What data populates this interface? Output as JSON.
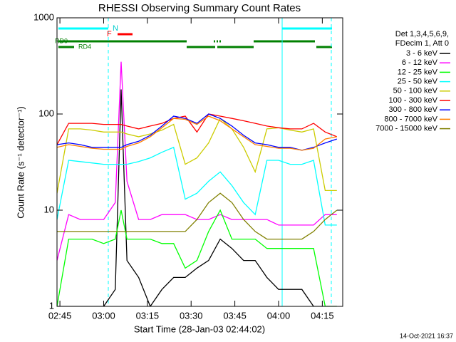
{
  "chart_data": {
    "type": "line",
    "title": "RHESSI Observing Summary Count Rates",
    "x_label": "Start Time (28-Jan-03 02:44:02)",
    "y_label": "Count Rate (s⁻¹ detector⁻¹)",
    "legend_header": [
      "Det 1,3,4,5,6,9,",
      "FDecim 1, Att 0"
    ],
    "annotations": [
      "N",
      "F",
      "RD0",
      "RD4"
    ],
    "footer": "14-Oct-2021 16:37",
    "log_y": true,
    "ylim": [
      1,
      1000
    ],
    "yticks": [
      1,
      10,
      100,
      1000
    ],
    "xlim": [
      164,
      262
    ],
    "xticks": [
      {
        "value": 165,
        "label": "02:45"
      },
      {
        "value": 180,
        "label": "03:00"
      },
      {
        "value": 195,
        "label": "03:15"
      },
      {
        "value": 210,
        "label": "03:30"
      },
      {
        "value": 225,
        "label": "03:45"
      },
      {
        "value": 240,
        "label": "04:00"
      },
      {
        "value": 255,
        "label": "04:15"
      }
    ],
    "x": [
      164,
      168,
      172,
      176,
      180,
      184,
      186,
      188,
      192,
      196,
      200,
      204,
      208,
      212,
      216,
      220,
      224,
      228,
      232,
      236,
      240,
      244,
      248,
      252,
      256,
      260
    ],
    "series": [
      {
        "name": "3 - 6 keV",
        "color": "#000000",
        "values": [
          1,
          1,
          1,
          1,
          1,
          1.5,
          180,
          3,
          2,
          1,
          1.5,
          2,
          2,
          2.5,
          3,
          5,
          4,
          3,
          3,
          2,
          1.5,
          1.5,
          1.5,
          1,
          1,
          1
        ]
      },
      {
        "name": "6 - 12 keV",
        "color": "#ff00ff",
        "values": [
          3,
          9,
          8,
          8,
          8,
          12,
          350,
          20,
          8,
          8,
          9,
          9,
          9,
          8,
          8,
          9,
          8,
          8,
          8,
          8,
          7,
          7,
          7,
          7,
          9,
          9
        ]
      },
      {
        "name": "12 - 25 keV",
        "color": "#00ff00",
        "values": [
          1,
          5,
          5,
          5,
          4.5,
          5,
          10,
          5,
          5,
          5,
          4.5,
          4.5,
          2.5,
          3,
          6,
          10,
          5,
          5,
          5,
          4,
          4,
          4,
          4,
          4,
          1,
          1
        ]
      },
      {
        "name": "25 - 50 keV",
        "color": "#00ffff",
        "values": [
          8,
          33,
          32,
          31,
          30,
          30,
          30,
          30,
          32,
          35,
          40,
          45,
          13,
          15,
          20,
          25,
          18,
          12,
          9,
          33,
          33,
          30,
          30,
          33,
          7,
          7
        ]
      },
      {
        "name": "50 - 100 keV",
        "color": "#cccc00",
        "values": [
          15,
          70,
          70,
          68,
          65,
          65,
          65,
          62,
          58,
          62,
          68,
          78,
          30,
          35,
          50,
          90,
          70,
          45,
          25,
          70,
          72,
          68,
          65,
          70,
          16,
          16
        ]
      },
      {
        "name": "100 - 300 keV",
        "color": "#ff0000",
        "values": [
          48,
          80,
          80,
          80,
          78,
          78,
          78,
          75,
          70,
          75,
          80,
          90,
          95,
          65,
          100,
          95,
          90,
          85,
          80,
          75,
          72,
          70,
          70,
          80,
          65,
          58
        ]
      },
      {
        "name": "300 - 800 keV",
        "color": "#0000ff",
        "values": [
          48,
          50,
          48,
          45,
          45,
          45,
          45,
          48,
          52,
          60,
          75,
          95,
          90,
          80,
          100,
          90,
          75,
          60,
          50,
          48,
          45,
          45,
          42,
          45,
          50,
          55
        ]
      },
      {
        "name": "800 - 7000 keV",
        "color": "#ff8000",
        "values": [
          45,
          48,
          46,
          44,
          43,
          43,
          43,
          46,
          50,
          58,
          72,
          90,
          88,
          78,
          95,
          85,
          70,
          58,
          48,
          46,
          44,
          44,
          42,
          44,
          55,
          58
        ]
      },
      {
        "name": "7000 - 15000 keV",
        "color": "#808000",
        "values": [
          6,
          6,
          6,
          6,
          6,
          6,
          6,
          6,
          6,
          6,
          6,
          6,
          6,
          8,
          12,
          15,
          12,
          8,
          6,
          5,
          5,
          5,
          5,
          6,
          8,
          10
        ]
      }
    ]
  }
}
